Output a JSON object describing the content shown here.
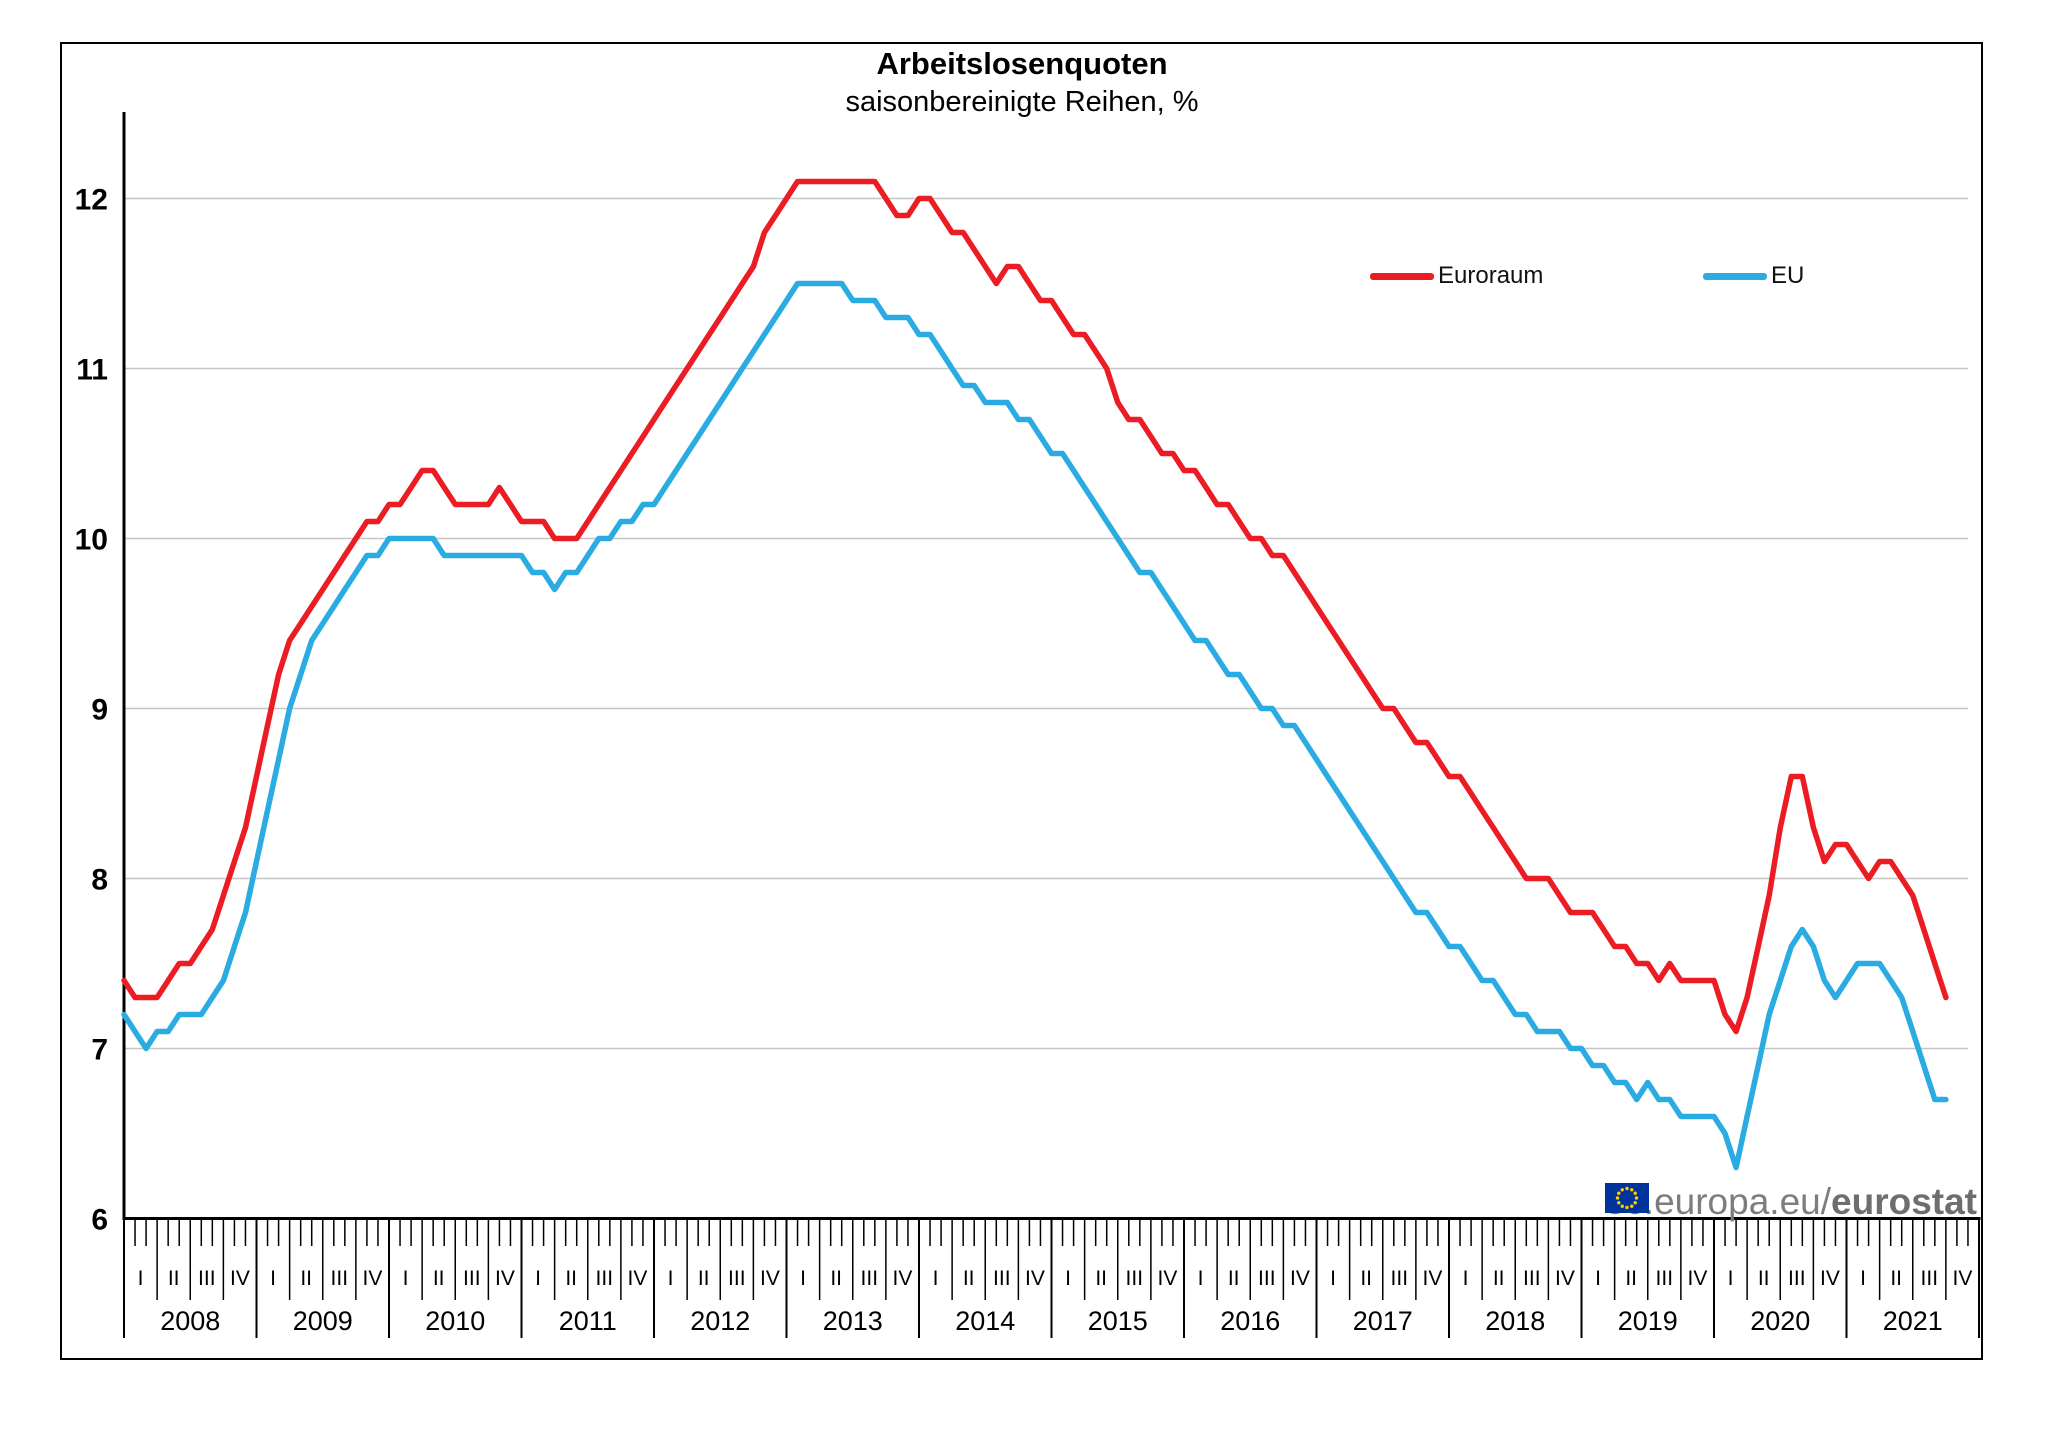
{
  "header": {
    "title": "Arbeitslosenquoten",
    "subtitle": "saisonbereinigte Reihen, %"
  },
  "legend": [
    {
      "label": "Euroraum",
      "color": "#ec1c24"
    },
    {
      "label": "EU",
      "color": "#2aabe2"
    }
  ],
  "watermark": {
    "text_regular": "ec.europa.eu/",
    "text_bold": "eurostat"
  },
  "chart_data": {
    "type": "line",
    "title": "Arbeitslosenquoten",
    "subtitle": "saisonbereinigte Reihen, %",
    "ylabel": "",
    "xlabel": "",
    "unit": "%",
    "frequency": "monthly",
    "x_start": "2008-01",
    "x_end": "2021-10",
    "ylim": [
      6,
      12.5
    ],
    "yticks": [
      12,
      11,
      10,
      9,
      8,
      7,
      6
    ],
    "grid": "horizontal",
    "legend_position": "top-right-inside",
    "years": [
      2008,
      2009,
      2010,
      2011,
      2012,
      2013,
      2014,
      2015,
      2016,
      2017,
      2018,
      2019,
      2020,
      2021
    ],
    "quarter_labels": [
      "I",
      "II",
      "III",
      "IV"
    ],
    "series": [
      {
        "name": "Euroraum",
        "color": "#ec1c24",
        "values": [
          7.4,
          7.3,
          7.3,
          7.3,
          7.4,
          7.5,
          7.5,
          7.6,
          7.7,
          7.9,
          8.1,
          8.3,
          8.6,
          8.9,
          9.2,
          9.4,
          9.5,
          9.6,
          9.7,
          9.8,
          9.9,
          10,
          10.1,
          10.1,
          10.2,
          10.2,
          10.3,
          10.4,
          10.4,
          10.3,
          10.2,
          10.2,
          10.2,
          10.2,
          10.3,
          10.2,
          10.1,
          10.1,
          10.1,
          10,
          10,
          10,
          10.1,
          10.2,
          10.3,
          10.4,
          10.5,
          10.6,
          10.7,
          10.8,
          10.9,
          11,
          11.1,
          11.2,
          11.3,
          11.4,
          11.5,
          11.6,
          11.8,
          11.9,
          12,
          12.1,
          12.1,
          12.1,
          12.1,
          12.1,
          12.1,
          12.1,
          12.1,
          12,
          11.9,
          11.9,
          12,
          12,
          11.9,
          11.8,
          11.8,
          11.7,
          11.6,
          11.5,
          11.6,
          11.6,
          11.5,
          11.4,
          11.4,
          11.3,
          11.2,
          11.2,
          11.1,
          11,
          10.8,
          10.7,
          10.7,
          10.6,
          10.5,
          10.5,
          10.4,
          10.4,
          10.3,
          10.2,
          10.2,
          10.1,
          10,
          10,
          9.9,
          9.9,
          9.8,
          9.7,
          9.6,
          9.5,
          9.4,
          9.3,
          9.2,
          9.1,
          9,
          9,
          8.9,
          8.8,
          8.8,
          8.7,
          8.6,
          8.6,
          8.5,
          8.4,
          8.3,
          8.2,
          8.1,
          8,
          8,
          8,
          7.9,
          7.8,
          7.8,
          7.8,
          7.7,
          7.6,
          7.6,
          7.5,
          7.5,
          7.4,
          7.5,
          7.4,
          7.4,
          7.4,
          7.4,
          7.2,
          7.1,
          7.3,
          7.6,
          7.9,
          8.3,
          8.6,
          8.6,
          8.3,
          8.1,
          8.2,
          8.2,
          8.1,
          8,
          8.1,
          8.1,
          8,
          7.9,
          7.7,
          7.5,
          7.3
        ]
      },
      {
        "name": "EU",
        "color": "#2aabe2",
        "values": [
          7.2,
          7.1,
          7,
          7.1,
          7.1,
          7.2,
          7.2,
          7.2,
          7.3,
          7.4,
          7.6,
          7.8,
          8.1,
          8.4,
          8.7,
          9,
          9.2,
          9.4,
          9.5,
          9.6,
          9.7,
          9.8,
          9.9,
          9.9,
          10,
          10,
          10,
          10,
          10,
          9.9,
          9.9,
          9.9,
          9.9,
          9.9,
          9.9,
          9.9,
          9.9,
          9.8,
          9.8,
          9.7,
          9.8,
          9.8,
          9.9,
          10,
          10,
          10.1,
          10.1,
          10.2,
          10.2,
          10.3,
          10.4,
          10.5,
          10.6,
          10.7,
          10.8,
          10.9,
          11,
          11.1,
          11.2,
          11.3,
          11.4,
          11.5,
          11.5,
          11.5,
          11.5,
          11.5,
          11.4,
          11.4,
          11.4,
          11.3,
          11.3,
          11.3,
          11.2,
          11.2,
          11.1,
          11,
          10.9,
          10.9,
          10.8,
          10.8,
          10.8,
          10.7,
          10.7,
          10.6,
          10.5,
          10.5,
          10.4,
          10.3,
          10.2,
          10.1,
          10,
          9.9,
          9.8,
          9.8,
          9.7,
          9.6,
          9.5,
          9.4,
          9.4,
          9.3,
          9.2,
          9.2,
          9.1,
          9,
          9,
          8.9,
          8.9,
          8.8,
          8.7,
          8.6,
          8.5,
          8.4,
          8.3,
          8.2,
          8.1,
          8,
          7.9,
          7.8,
          7.8,
          7.7,
          7.6,
          7.6,
          7.5,
          7.4,
          7.4,
          7.3,
          7.2,
          7.2,
          7.1,
          7.1,
          7.1,
          7,
          7,
          6.9,
          6.9,
          6.8,
          6.8,
          6.7,
          6.8,
          6.7,
          6.7,
          6.6,
          6.6,
          6.6,
          6.6,
          6.5,
          6.3,
          6.6,
          6.9,
          7.2,
          7.4,
          7.6,
          7.7,
          7.6,
          7.4,
          7.3,
          7.4,
          7.5,
          7.5,
          7.5,
          7.4,
          7.3,
          7.1,
          6.9,
          6.7,
          6.7
        ]
      }
    ]
  }
}
